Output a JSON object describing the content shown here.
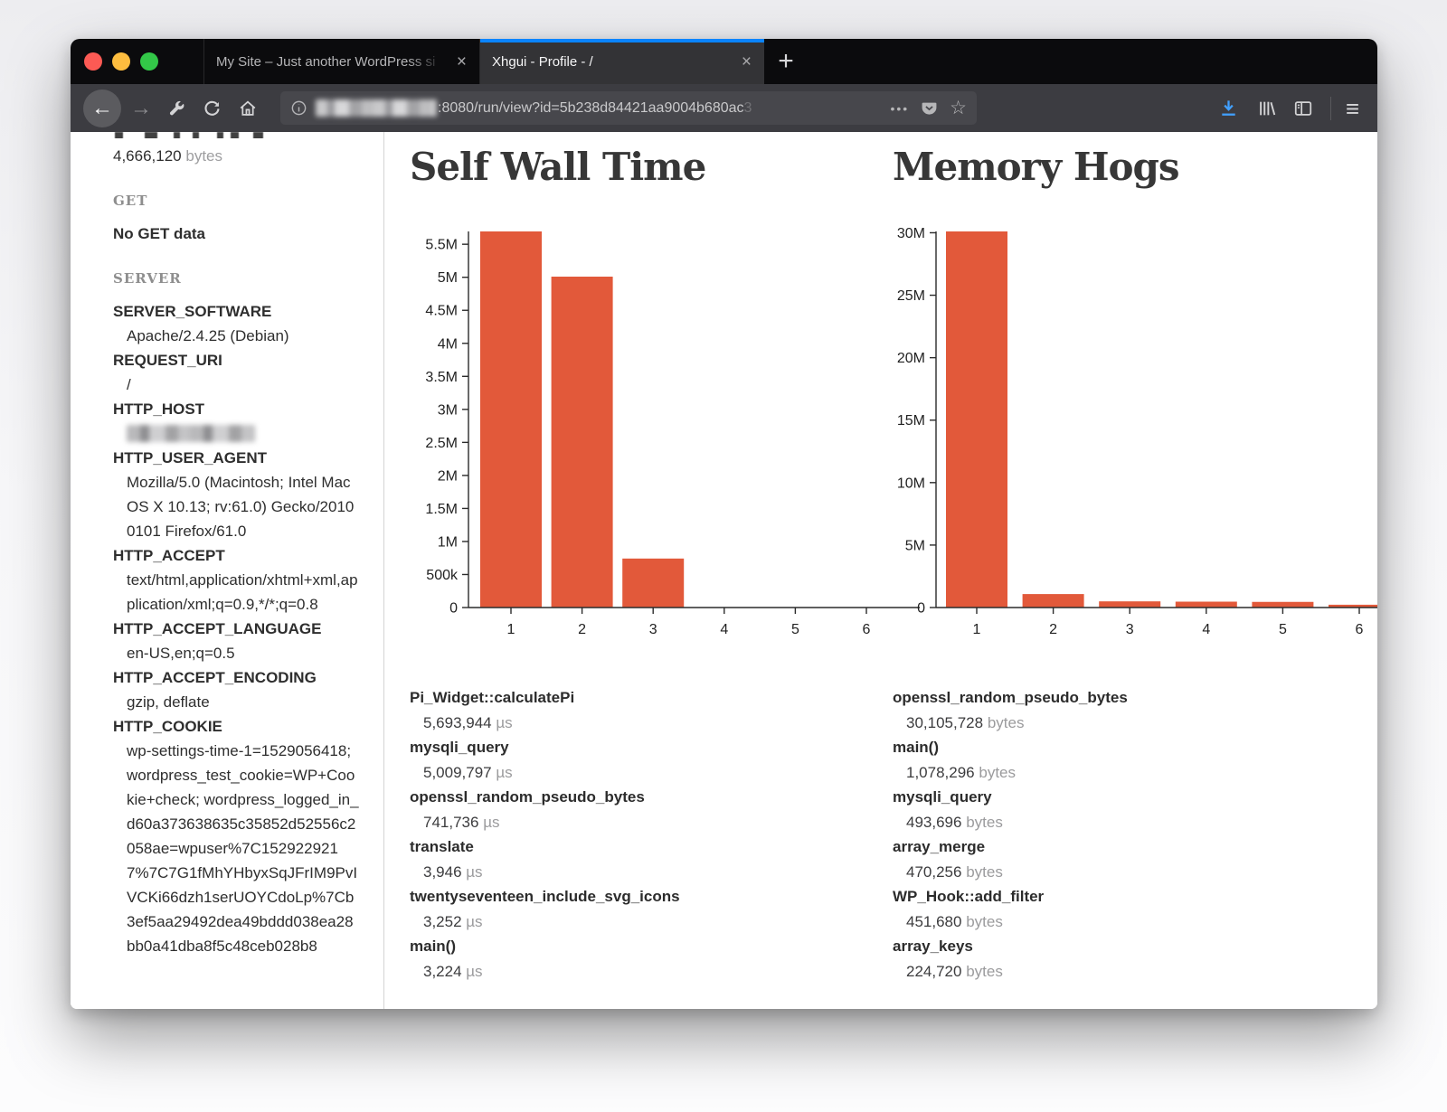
{
  "browser": {
    "tabs": [
      {
        "title": "My Site – Just another WordPress si",
        "active": false
      },
      {
        "title": "Xhgui - Profile - /",
        "active": true
      }
    ],
    "glyphs": {
      "back": "←",
      "forward": "→",
      "close": "×",
      "new_tab": "+",
      "dots": "•••",
      "star": "☆",
      "hamburger": "≡"
    },
    "url": {
      "host_blurred": true,
      "visible_text": ":8080/run/view?id=5b238d84421aa9004b680ac",
      "fade_tail": "3"
    },
    "accent_blue": "#0a84ff",
    "download_blue": "#41a0ff"
  },
  "sidebar": {
    "summary_value": "4,666,120",
    "summary_unit": "bytes",
    "get": {
      "header": "GET",
      "empty": "No GET data"
    },
    "server": {
      "header": "SERVER",
      "entries": [
        {
          "key": "SERVER_SOFTWARE",
          "value": "Apache/2.4.25 (Debian)"
        },
        {
          "key": "REQUEST_URI",
          "value": "/"
        },
        {
          "key": "HTTP_HOST",
          "value": "",
          "blurred": true
        },
        {
          "key": "HTTP_USER_AGENT",
          "value": "Mozilla/5.0 (Macintosh; Intel Mac OS X 10.13; rv:61.0) Gecko/20100101 Firefox/61.0"
        },
        {
          "key": "HTTP_ACCEPT",
          "value": "text/html,application/xhtml+xml,application/xml;q=0.9,*/*;q=0.8"
        },
        {
          "key": "HTTP_ACCEPT_LANGUAGE",
          "value": "en-US,en;q=0.5"
        },
        {
          "key": "HTTP_ACCEPT_ENCODING",
          "value": "gzip, deflate"
        },
        {
          "key": "HTTP_COOKIE",
          "value": "wp-settings-time-1=1529056418; wordpress_test_cookie=WP+Cookie+check; wordpress_logged_in_d60a373638635c35852d52556c2058ae=wpuser%7C1529229217%7C7G1fMhYHbyxSqJFrIM9PvIVCKi66dzh1serUOYCdoLp%7Cb3ef5aa29492dea49bddd038ea28bb0a41dba8f5c48ceb028b8"
        }
      ]
    }
  },
  "main": {
    "columns": [
      {
        "title": "Self Wall Time",
        "unit": "µs",
        "items": [
          {
            "name": "Pi_Widget::calculatePi",
            "value": "5,693,944"
          },
          {
            "name": "mysqli_query",
            "value": "5,009,797"
          },
          {
            "name": "openssl_random_pseudo_bytes",
            "value": "741,736"
          },
          {
            "name": "translate",
            "value": "3,946"
          },
          {
            "name": "twentyseventeen_include_svg_icons",
            "value": "3,252"
          },
          {
            "name": "main()",
            "value": "3,224"
          }
        ]
      },
      {
        "title": "Memory Hogs",
        "unit": "bytes",
        "items": [
          {
            "name": "openssl_random_pseudo_bytes",
            "value": "30,105,728"
          },
          {
            "name": "main()",
            "value": "1,078,296"
          },
          {
            "name": "mysqli_query",
            "value": "493,696"
          },
          {
            "name": "array_merge",
            "value": "470,256"
          },
          {
            "name": "WP_Hook::add_filter",
            "value": "451,680"
          },
          {
            "name": "array_keys",
            "value": "224,720"
          }
        ]
      }
    ]
  },
  "chart_data": [
    {
      "type": "bar",
      "title": "Self Wall Time",
      "categories": [
        "1",
        "2",
        "3",
        "4",
        "5",
        "6"
      ],
      "values": [
        5693944,
        5009797,
        741736,
        3946,
        3252,
        3224
      ],
      "series_labels": [
        "Pi_Widget::calculatePi",
        "mysqli_query",
        "openssl_random_pseudo_bytes",
        "translate",
        "twentyseventeen_include_svg_icons",
        "main()"
      ],
      "ylabel": "µs",
      "ylim": [
        0,
        5693944
      ],
      "ytick_values": [
        0,
        500000,
        1000000,
        1500000,
        2000000,
        2500000,
        3000000,
        3500000,
        4000000,
        4500000,
        5000000,
        5500000
      ],
      "ytick_labels": [
        "0",
        "500k",
        "1M",
        "1.5M",
        "2M",
        "2.5M",
        "3M",
        "3.5M",
        "4M",
        "4.5M",
        "5M",
        "5.5M"
      ],
      "grid": false,
      "legend": "none",
      "bar_color": "#e2593a"
    },
    {
      "type": "bar",
      "title": "Memory Hogs",
      "categories": [
        "1",
        "2",
        "3",
        "4",
        "5",
        "6"
      ],
      "values": [
        30105728,
        1078296,
        493696,
        470256,
        451680,
        224720
      ],
      "series_labels": [
        "openssl_random_pseudo_bytes",
        "main()",
        "mysqli_query",
        "array_merge",
        "WP_Hook::add_filter",
        "array_keys"
      ],
      "ylabel": "bytes",
      "ylim": [
        0,
        30105728
      ],
      "ytick_values": [
        0,
        5000000,
        10000000,
        15000000,
        20000000,
        25000000,
        30000000
      ],
      "ytick_labels": [
        "0",
        "5M",
        "10M",
        "15M",
        "20M",
        "25M",
        "30M"
      ],
      "grid": false,
      "legend": "none",
      "bar_color": "#e2593a"
    }
  ]
}
